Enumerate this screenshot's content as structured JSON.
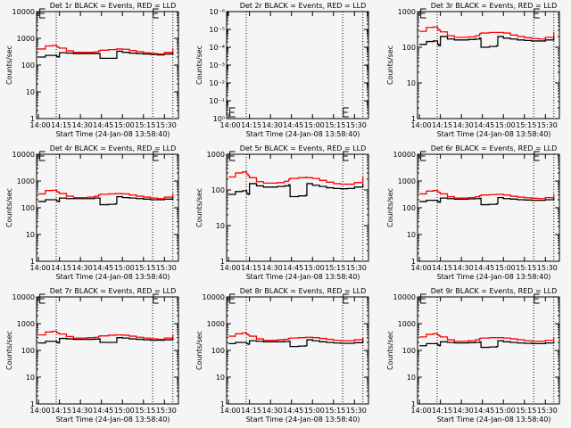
{
  "chart_data": [
    {
      "type": "line",
      "title": "Det 1r BLACK = Events, RED = LLD",
      "xlabel": "Start Time (24-Jan-08 13:58:40)",
      "ylabel": "Counts/sec",
      "yscale": "log",
      "ylim": [
        1,
        10000
      ],
      "yticklabels": [
        "1",
        "10",
        "100",
        "1000",
        "10000"
      ],
      "series": [
        {
          "name": "Events",
          "color": "#000000",
          "values": [
            200,
            230,
            230,
            210,
            200,
            290,
            280,
            270,
            270,
            270,
            270,
            270,
            180,
            180,
            180,
            330,
            300,
            280,
            270,
            260,
            250,
            240,
            260,
            310
          ]
        },
        {
          "name": "LLD",
          "color": "#ff0000",
          "values": [
            400,
            520,
            540,
            480,
            460,
            430,
            340,
            300,
            300,
            300,
            310,
            340,
            360,
            380,
            390,
            400,
            390,
            350,
            320,
            290,
            270,
            260,
            300,
            420
          ]
        }
      ]
    },
    {
      "type": "line",
      "title": "Det 2r BLACK = Events, RED = LLD",
      "xlabel": "Start Time (24-Jan-08 13:58:40)",
      "ylabel": "Counts/sec",
      "yscale": "log",
      "ylim": [
        1,
        1000000
      ],
      "yticklabels": [
        "10⁰",
        "10⁻¹",
        "10⁻²",
        "10⁻³",
        "10⁻⁴",
        "10⁻⁵",
        "10⁻⁶"
      ],
      "markers_bottom": true,
      "series": []
    },
    {
      "type": "line",
      "title": "Det 3r BLACK = Events, RED = LLD",
      "xlabel": "Start Time (24-Jan-08 13:58:40)",
      "ylabel": "Counts/sec",
      "yscale": "log",
      "ylim": [
        1,
        1000
      ],
      "yticklabels": [
        "1",
        "10",
        "100",
        "1000"
      ],
      "series": [
        {
          "name": "Events",
          "color": "#000000",
          "values": [
            120,
            145,
            150,
            120,
            110,
            200,
            170,
            160,
            160,
            165,
            170,
            180,
            100,
            105,
            110,
            200,
            180,
            170,
            160,
            155,
            150,
            150,
            160,
            200
          ]
        },
        {
          "name": "LLD",
          "color": "#ff0000",
          "values": [
            280,
            360,
            370,
            320,
            300,
            270,
            210,
            190,
            190,
            195,
            210,
            240,
            250,
            260,
            260,
            260,
            250,
            220,
            200,
            185,
            175,
            170,
            190,
            270
          ]
        }
      ]
    },
    {
      "type": "line",
      "title": "Det 4r BLACK = Events, RED = LLD",
      "xlabel": "Start Time (24-Jan-08 13:58:40)",
      "ylabel": "Counts/sec",
      "yscale": "log",
      "ylim": [
        1,
        10000
      ],
      "yticklabels": [
        "1",
        "10",
        "100",
        "1000",
        "10000"
      ],
      "series": [
        {
          "name": "Events",
          "color": "#000000",
          "values": [
            170,
            200,
            200,
            180,
            170,
            230,
            220,
            220,
            220,
            220,
            230,
            230,
            130,
            135,
            140,
            260,
            240,
            230,
            220,
            210,
            200,
            200,
            210,
            260
          ]
        },
        {
          "name": "LLD",
          "color": "#ff0000",
          "values": [
            330,
            440,
            450,
            400,
            380,
            340,
            270,
            240,
            240,
            250,
            270,
            300,
            320,
            330,
            340,
            340,
            330,
            300,
            270,
            250,
            230,
            220,
            250,
            340
          ]
        }
      ]
    },
    {
      "type": "line",
      "title": "Det 5r BLACK = Events, RED = LLD",
      "xlabel": "Start Time (24-Jan-08 13:58:40)",
      "ylabel": "Counts/sec",
      "yscale": "log",
      "ylim": [
        1,
        1000
      ],
      "yticklabels": [
        "1",
        "10",
        "100",
        "1000"
      ],
      "series": [
        {
          "name": "Events",
          "color": "#000000",
          "values": [
            75,
            90,
            95,
            80,
            75,
            150,
            130,
            120,
            120,
            125,
            130,
            140,
            65,
            68,
            70,
            150,
            135,
            125,
            115,
            110,
            108,
            110,
            120,
            150
          ]
        },
        {
          "name": "LLD",
          "color": "#ff0000",
          "values": [
            230,
            300,
            320,
            280,
            250,
            220,
            170,
            155,
            155,
            160,
            175,
            200,
            210,
            220,
            225,
            220,
            210,
            185,
            165,
            150,
            145,
            145,
            160,
            230
          ]
        }
      ]
    },
    {
      "type": "line",
      "title": "Det 6r BLACK = Events, RED = LLD",
      "xlabel": "Start Time (24-Jan-08 13:58:40)",
      "ylabel": "Counts/sec",
      "yscale": "log",
      "ylim": [
        1,
        10000
      ],
      "yticklabels": [
        "1",
        "10",
        "100",
        "1000",
        "10000"
      ],
      "series": [
        {
          "name": "Events",
          "color": "#000000",
          "values": [
            170,
            190,
            190,
            170,
            160,
            230,
            220,
            210,
            210,
            215,
            220,
            225,
            130,
            135,
            140,
            240,
            220,
            210,
            200,
            195,
            190,
            190,
            200,
            240
          ]
        },
        {
          "name": "LLD",
          "color": "#ff0000",
          "values": [
            330,
            420,
            440,
            390,
            370,
            330,
            260,
            230,
            230,
            240,
            260,
            280,
            300,
            310,
            320,
            320,
            300,
            270,
            250,
            235,
            225,
            220,
            240,
            330
          ]
        }
      ]
    },
    {
      "type": "line",
      "title": "Det 7r BLACK = Events, RED = LLD",
      "xlabel": "Start Time (24-Jan-08 13:58:40)",
      "ylabel": "Counts/sec",
      "yscale": "log",
      "ylim": [
        1,
        10000
      ],
      "yticklabels": [
        "1",
        "10",
        "100",
        "1000",
        "10000"
      ],
      "series": [
        {
          "name": "Events",
          "color": "#000000",
          "values": [
            190,
            220,
            220,
            200,
            190,
            280,
            270,
            260,
            260,
            260,
            265,
            270,
            200,
            200,
            200,
            300,
            290,
            270,
            260,
            250,
            240,
            240,
            250,
            300
          ]
        },
        {
          "name": "LLD",
          "color": "#ff0000",
          "values": [
            380,
            490,
            520,
            460,
            440,
            410,
            330,
            290,
            290,
            300,
            310,
            340,
            350,
            370,
            380,
            380,
            370,
            340,
            310,
            290,
            270,
            260,
            290,
            400
          ]
        }
      ]
    },
    {
      "type": "line",
      "title": "Det 8r BLACK = Events, RED = LLD",
      "xlabel": "Start Time (24-Jan-08 13:58:40)",
      "ylabel": "Counts/sec",
      "yscale": "log",
      "ylim": [
        1,
        10000
      ],
      "yticklabels": [
        "1",
        "10",
        "100",
        "1000",
        "10000"
      ],
      "series": [
        {
          "name": "Events",
          "color": "#000000",
          "values": [
            180,
            200,
            200,
            180,
            170,
            230,
            220,
            210,
            210,
            210,
            215,
            220,
            140,
            145,
            150,
            250,
            230,
            210,
            200,
            190,
            185,
            185,
            195,
            240
          ]
        },
        {
          "name": "LLD",
          "color": "#ff0000",
          "values": [
            340,
            420,
            450,
            400,
            380,
            340,
            270,
            240,
            240,
            250,
            260,
            280,
            290,
            300,
            310,
            310,
            300,
            280,
            260,
            240,
            230,
            230,
            250,
            310
          ]
        }
      ]
    },
    {
      "type": "line",
      "title": "Det 9r BLACK = Events, RED = LLD",
      "xlabel": "Start Time (24-Jan-08 13:58:40)",
      "ylabel": "Counts/sec",
      "yscale": "log",
      "ylim": [
        1,
        10000
      ],
      "yticklabels": [
        "1",
        "10",
        "100",
        "1000",
        "10000"
      ],
      "series": [
        {
          "name": "Events",
          "color": "#000000",
          "values": [
            150,
            180,
            180,
            160,
            150,
            210,
            200,
            190,
            190,
            195,
            200,
            210,
            130,
            135,
            140,
            230,
            210,
            200,
            190,
            185,
            180,
            180,
            190,
            220
          ]
        },
        {
          "name": "LLD",
          "color": "#ff0000",
          "values": [
            320,
            400,
            420,
            380,
            350,
            320,
            250,
            220,
            220,
            230,
            250,
            280,
            290,
            300,
            300,
            300,
            290,
            270,
            250,
            230,
            220,
            220,
            240,
            300
          ]
        }
      ]
    }
  ],
  "x_minutes_after_1400": [
    0,
    5,
    10,
    13,
    14,
    15,
    20,
    25,
    30,
    35,
    40,
    43,
    44,
    50,
    55,
    56,
    60,
    65,
    70,
    75,
    80,
    85,
    90,
    96
  ],
  "xlim_minutes": [
    -1.33,
    100
  ],
  "xticklabels": [
    "14:00",
    "14:15",
    "14:30",
    "14:45",
    "15:00",
    "15:15",
    "15:30"
  ],
  "xtick_minutes": [
    0,
    15,
    30,
    45,
    60,
    75,
    90
  ],
  "dotted_line_minutes": [
    12.7,
    81.6,
    96
  ],
  "marker_minutes": [
    1,
    82
  ]
}
